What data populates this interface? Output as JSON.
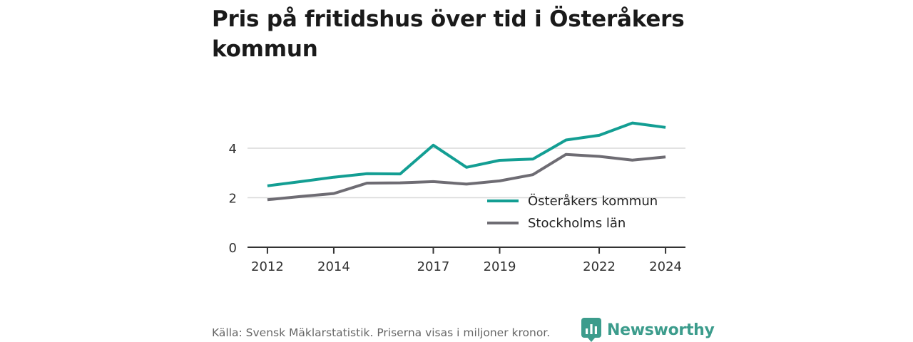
{
  "title": "Pris på fritidshus över tid i Österåkers kommun",
  "source": "Källa: Svensk Mäklarstatistik. Priserna visas i miljoner kronor.",
  "brand": {
    "name": "Newsworthy",
    "icon": "newsworthy-logo-icon",
    "color": "#3c9c8c"
  },
  "chart_data": {
    "type": "line",
    "x": [
      2012,
      2013,
      2014,
      2015,
      2016,
      2017,
      2018,
      2019,
      2020,
      2021,
      2022,
      2023,
      2024
    ],
    "xticks": [
      2012,
      2014,
      2017,
      2019,
      2022,
      2024
    ],
    "yticks": [
      0,
      2,
      4
    ],
    "ylim": [
      0,
      5.2
    ],
    "xlim": [
      2011.4,
      2024.6
    ],
    "grid": true,
    "legend_position": "lower-right",
    "series": [
      {
        "name": "Österåkers kommun",
        "color": "#139e93",
        "values": [
          2.48,
          2.65,
          2.83,
          2.97,
          2.96,
          4.12,
          3.23,
          3.51,
          3.56,
          4.33,
          4.52,
          5.02,
          4.84
        ]
      },
      {
        "name": "Stockholms län",
        "color": "#6e6c73",
        "values": [
          1.92,
          2.05,
          2.17,
          2.59,
          2.6,
          2.65,
          2.55,
          2.68,
          2.93,
          3.75,
          3.67,
          3.52,
          3.65
        ]
      }
    ]
  }
}
